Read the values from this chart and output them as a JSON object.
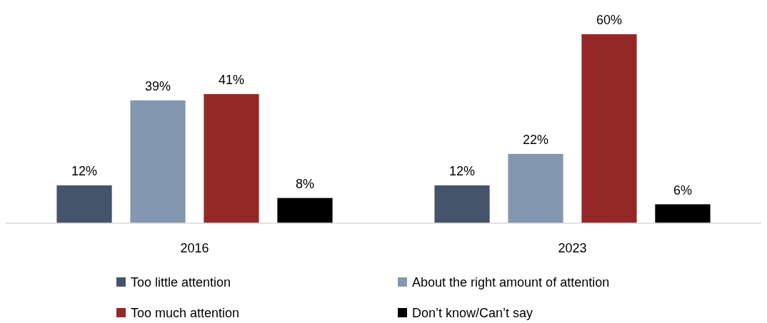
{
  "chart_data": {
    "type": "bar",
    "categories": [
      "2016",
      "2023"
    ],
    "series": [
      {
        "name": "Too little attention",
        "color": "#44546a",
        "values": [
          12,
          12
        ],
        "value_labels": [
          "12%",
          "12%"
        ]
      },
      {
        "name": "About the right amount of attention",
        "color": "#8497b0",
        "values": [
          39,
          22
        ],
        "value_labels": [
          "39%",
          "22%"
        ]
      },
      {
        "name": "Too much attention",
        "color": "#952826",
        "values": [
          41,
          60
        ],
        "value_labels": [
          "41%",
          "60%"
        ]
      },
      {
        "name": "Don’t know/Can’t say",
        "color": "#000000",
        "values": [
          8,
          6
        ],
        "value_labels": [
          "8%",
          "6%"
        ]
      }
    ],
    "legend": "bottom",
    "grid": false
  }
}
